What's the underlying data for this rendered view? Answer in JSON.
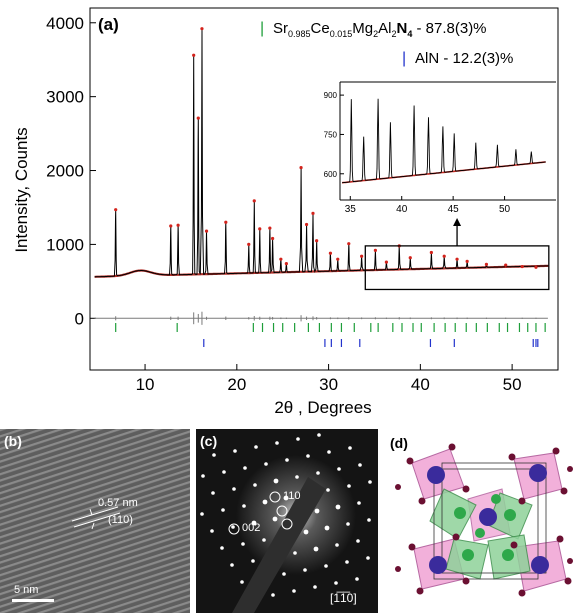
{
  "chart_data": {
    "type": "line",
    "panel_label": "(a)",
    "xlabel": "2θ , Degrees",
    "ylabel": "Intensity, Counts",
    "xlim": [
      4,
      55
    ],
    "ylim": [
      -700,
      4200
    ],
    "xticks": [
      10,
      20,
      30,
      40,
      50
    ],
    "yticks": [
      4000,
      3000,
      2000,
      1000,
      0
    ],
    "ytick_labels": [
      "4000",
      "3000",
      "2000",
      "1000",
      "0"
    ],
    "legend": [
      {
        "marker": "|",
        "color": "#1e9e3a",
        "label_main": "Sr",
        "sub1": "0.985",
        "mid1": "Ce",
        "sub2": "0.015",
        "mid2": "Mg",
        "sub3": "2",
        "mid3": "Al",
        "sub4": "2",
        "mid4": "N",
        "sub5": "4",
        "tail": " - 87.8(3)%"
      },
      {
        "marker": "|",
        "color": "#2233cc",
        "label": "AlN - 12.2(3)%"
      }
    ],
    "background_level": 560,
    "peaks": [
      {
        "x": 6.8,
        "y": 1470
      },
      {
        "x": 12.8,
        "y": 1250
      },
      {
        "x": 13.6,
        "y": 1260
      },
      {
        "x": 15.3,
        "y": 3560
      },
      {
        "x": 15.8,
        "y": 2710
      },
      {
        "x": 16.2,
        "y": 3920
      },
      {
        "x": 16.7,
        "y": 1180
      },
      {
        "x": 18.8,
        "y": 1300
      },
      {
        "x": 21.3,
        "y": 1000
      },
      {
        "x": 21.9,
        "y": 1590
      },
      {
        "x": 22.5,
        "y": 1210
      },
      {
        "x": 23.6,
        "y": 1220
      },
      {
        "x": 23.9,
        "y": 1080
      },
      {
        "x": 24.8,
        "y": 800
      },
      {
        "x": 25.4,
        "y": 740
      },
      {
        "x": 27.0,
        "y": 2040
      },
      {
        "x": 27.6,
        "y": 1270
      },
      {
        "x": 28.3,
        "y": 1420
      },
      {
        "x": 28.7,
        "y": 1050
      },
      {
        "x": 30.2,
        "y": 880
      },
      {
        "x": 31.0,
        "y": 800
      },
      {
        "x": 32.2,
        "y": 1010
      },
      {
        "x": 33.6,
        "y": 840
      },
      {
        "x": 35.1,
        "y": 920
      },
      {
        "x": 36.3,
        "y": 760
      },
      {
        "x": 37.7,
        "y": 980
      },
      {
        "x": 38.9,
        "y": 820
      },
      {
        "x": 41.2,
        "y": 890
      },
      {
        "x": 42.6,
        "y": 840
      },
      {
        "x": 44.0,
        "y": 800
      },
      {
        "x": 45.1,
        "y": 770
      },
      {
        "x": 47.2,
        "y": 730
      },
      {
        "x": 49.3,
        "y": 720
      },
      {
        "x": 51.1,
        "y": 700
      },
      {
        "x": 52.6,
        "y": 690
      }
    ],
    "phase1_ticks_x": [
      6.8,
      13.5,
      21.8,
      22.8,
      24.0,
      25.0,
      26.3,
      27.8,
      29.0,
      30.3,
      31.4,
      32.8,
      34.6,
      35.4,
      37.0,
      38.0,
      39.2,
      40.1,
      41.5,
      42.7,
      43.8,
      45.0,
      46.1,
      47.3,
      48.6,
      49.5,
      50.8,
      51.7,
      52.6,
      53.6
    ],
    "phase2_ticks_x": [
      16.4,
      29.6,
      30.3,
      31.4,
      33.4,
      41.1,
      43.7,
      52.3,
      52.6,
      52.8
    ],
    "inset": {
      "xlim": [
        34,
        55
      ],
      "ylim": [
        500,
        950
      ],
      "xticks": [
        35,
        40,
        45,
        50
      ],
      "yticks": [
        600,
        750,
        900
      ],
      "ytick_labels": [
        "600",
        "750",
        "900"
      ],
      "box_xlim": [
        34,
        54
      ],
      "box_ylim": [
        390,
        980
      ]
    }
  },
  "panel_b": {
    "label": "(b)",
    "spacing": "0.57 nm",
    "plane": "(110)",
    "scale": "5 nm"
  },
  "panel_c": {
    "label": "(c)",
    "spot1": "110",
    "spot2": "002",
    "zone_axis": "[1̅1̅0]"
  },
  "panel_d": {
    "label": "(d)"
  }
}
